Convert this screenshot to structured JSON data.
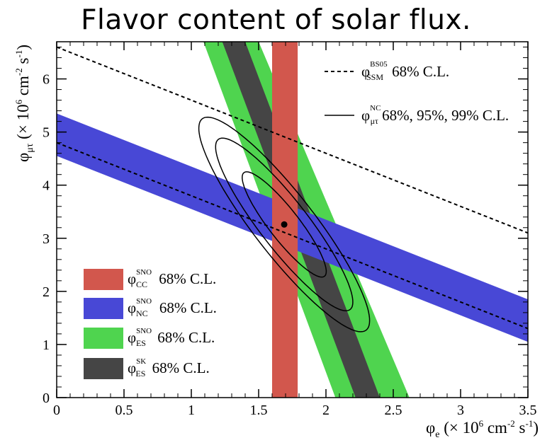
{
  "title": "Flavor content of solar flux.",
  "chart_data": {
    "type": "band-contour",
    "xlabel": {
      "sym": "φ",
      "sub": "e",
      "unit": "(× 10",
      "exp": "6",
      "unit2": " cm",
      "exp2": "-2",
      "unit3": " s",
      "exp3": "-1",
      "close": ")"
    },
    "ylabel": {
      "sym": "φ",
      "sub": "μτ",
      "unit": "(× 10",
      "exp": "6",
      "unit2": " cm",
      "exp2": "-2",
      "unit3": " s",
      "exp3": "-1",
      "close": ")"
    },
    "xlim": [
      0,
      3.5
    ],
    "ylim": [
      0,
      6.7
    ],
    "xticks": [
      0,
      0.5,
      1,
      1.5,
      2,
      2.5,
      3,
      3.5
    ],
    "xtick_labels": [
      "0",
      "0.5",
      "1",
      "1.5",
      "2",
      "2.5",
      "3",
      "3.5"
    ],
    "yticks": [
      0,
      1,
      2,
      3,
      4,
      5,
      6
    ],
    "ytick_labels": [
      "0",
      "1",
      "2",
      "3",
      "4",
      "5",
      "6"
    ],
    "colors": {
      "cc": "#d2574d",
      "nc": "#4848d6",
      "es_sno": "#4fd44f",
      "es_sk": "#454545",
      "frame": "#000000"
    },
    "bands": [
      {
        "id": "es_sno",
        "color": "#4fd44f",
        "type": "sloped",
        "poly": [
          [
            1.09,
            6.7
          ],
          [
            1.5,
            6.7
          ],
          [
            2.62,
            0
          ],
          [
            2.07,
            0
          ]
        ]
      },
      {
        "id": "es_sk",
        "color": "#454545",
        "type": "sloped",
        "poly": [
          [
            1.23,
            6.7
          ],
          [
            1.4,
            6.7
          ],
          [
            2.4,
            0
          ],
          [
            2.22,
            0
          ]
        ]
      },
      {
        "id": "nc",
        "color": "#4848d6",
        "type": "sloped",
        "poly": [
          [
            0,
            5.35
          ],
          [
            3.5,
            1.85
          ],
          [
            3.5,
            1.05
          ],
          [
            0,
            4.55
          ]
        ]
      },
      {
        "id": "cc",
        "color": "#d2574d",
        "type": "vertical",
        "x0": 1.6,
        "x1": 1.79
      }
    ],
    "lines": [
      {
        "id": "ssm",
        "style": "dashed",
        "points": [
          [
            0,
            6.6
          ],
          [
            3.5,
            3.1
          ]
        ]
      },
      {
        "id": "nc_center",
        "style": "dashed",
        "points": [
          [
            0,
            4.8
          ],
          [
            3.5,
            1.3
          ]
        ]
      }
    ],
    "best_fit": {
      "x": 1.69,
      "y": 3.26
    },
    "contours": [
      {
        "level": "68%",
        "cx": 1.69,
        "cy": 3.26,
        "a": 1.03,
        "b": 0.135,
        "angle": -74
      },
      {
        "level": "95%",
        "cx": 1.69,
        "cy": 3.26,
        "a": 1.69,
        "b": 0.215,
        "angle": -74
      },
      {
        "level": "99%",
        "cx": 1.69,
        "cy": 3.26,
        "a": 2.1,
        "b": 0.27,
        "angle": -74
      }
    ],
    "legend_top": [
      {
        "id": "ssm-legend",
        "style": "dashed",
        "sym": "φ",
        "sup": "BS05",
        "sub": "SSM",
        "text": " 68% C.L."
      },
      {
        "id": "nc-contour-legend",
        "style": "solid",
        "sym": "φ",
        "sup": "NC",
        "sub": "μτ",
        "text": " 68%, 95%, 99% C.L."
      }
    ],
    "legend_bottom": [
      {
        "id": "cc-legend",
        "color": "#d2574d",
        "sym": "φ",
        "sup": "SNO",
        "sub": "CC",
        "text": " 68% C.L."
      },
      {
        "id": "nc-legend",
        "color": "#4848d6",
        "sym": "φ",
        "sup": "SNO",
        "sub": "NC",
        "text": " 68% C.L."
      },
      {
        "id": "es-sno-legend",
        "color": "#4fd44f",
        "sym": "φ",
        "sup": "SNO",
        "sub": "ES",
        "text": " 68% C.L."
      },
      {
        "id": "es-sk-legend",
        "color": "#454545",
        "sym": "φ",
        "sup": "SK",
        "sub": "ES",
        "text": " 68% C.L."
      }
    ]
  }
}
